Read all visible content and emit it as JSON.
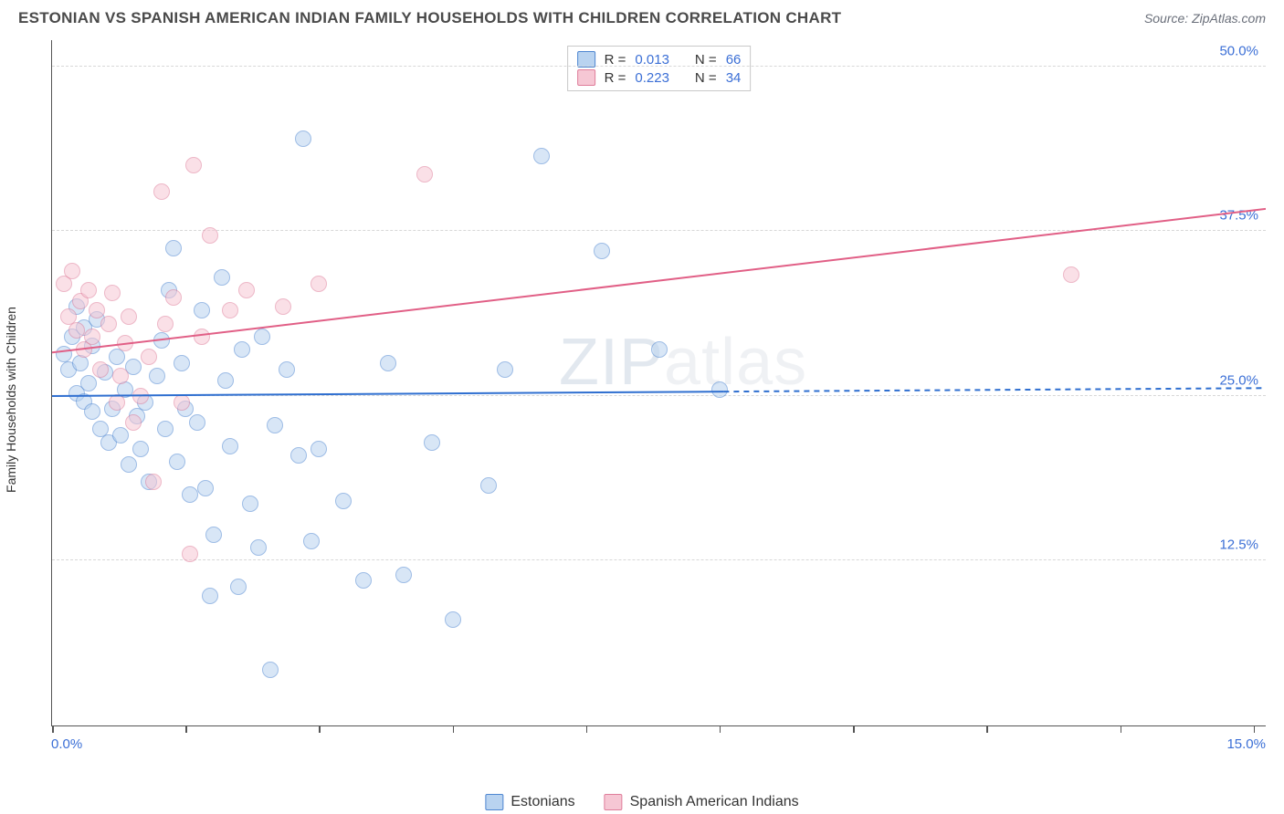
{
  "header": {
    "title": "ESTONIAN VS SPANISH AMERICAN INDIAN FAMILY HOUSEHOLDS WITH CHILDREN CORRELATION CHART",
    "source": "Source: ZipAtlas.com"
  },
  "watermark": {
    "part1": "ZIP",
    "part2": "atlas"
  },
  "chart": {
    "type": "scatter",
    "ylabel": "Family Households with Children",
    "background_color": "#ffffff",
    "grid_color": "#d8d8d8",
    "axis_color": "#555555",
    "label_color": "#333333",
    "tick_label_color": "#3b6fd6",
    "xlim": [
      0.0,
      15.0
    ],
    "ylim": [
      0.0,
      52.0
    ],
    "xtick_positions": [
      0.0,
      1.65,
      3.3,
      4.95,
      6.6,
      8.25,
      9.9,
      11.55,
      13.2,
      14.85
    ],
    "xmin_label": "0.0%",
    "xmax_label": "15.0%",
    "ytick_positions": [
      12.5,
      25.0,
      37.5,
      50.0
    ],
    "ytick_labels": [
      "12.5%",
      "25.0%",
      "37.5%",
      "50.0%"
    ],
    "marker_radius": 9,
    "marker_border_width": 1.4,
    "series": [
      {
        "name": "Estonians",
        "fill": "#b9d3f0",
        "stroke": "#4e86d1",
        "fill_opacity": 0.55,
        "R": "0.013",
        "N": "66",
        "trend": {
          "color": "#2f6fd0",
          "width": 2,
          "y_at_xmin": 25.0,
          "y_at_xmax": 25.6,
          "solid_until_x": 8.3
        },
        "points": [
          [
            0.15,
            28.2
          ],
          [
            0.2,
            27.0
          ],
          [
            0.25,
            29.5
          ],
          [
            0.3,
            25.2
          ],
          [
            0.3,
            31.8
          ],
          [
            0.35,
            27.5
          ],
          [
            0.4,
            24.6
          ],
          [
            0.4,
            30.2
          ],
          [
            0.45,
            26.0
          ],
          [
            0.5,
            23.8
          ],
          [
            0.5,
            28.8
          ],
          [
            0.55,
            30.8
          ],
          [
            0.6,
            22.5
          ],
          [
            0.65,
            26.8
          ],
          [
            0.7,
            21.5
          ],
          [
            0.75,
            24.0
          ],
          [
            0.8,
            28.0
          ],
          [
            0.85,
            22.0
          ],
          [
            0.9,
            25.5
          ],
          [
            0.95,
            19.8
          ],
          [
            1.0,
            27.2
          ],
          [
            1.05,
            23.5
          ],
          [
            1.1,
            21.0
          ],
          [
            1.15,
            24.5
          ],
          [
            1.2,
            18.5
          ],
          [
            1.3,
            26.5
          ],
          [
            1.35,
            29.2
          ],
          [
            1.4,
            22.5
          ],
          [
            1.45,
            33.0
          ],
          [
            1.5,
            36.2
          ],
          [
            1.55,
            20.0
          ],
          [
            1.6,
            27.5
          ],
          [
            1.65,
            24.0
          ],
          [
            1.7,
            17.5
          ],
          [
            1.8,
            23.0
          ],
          [
            1.85,
            31.5
          ],
          [
            1.9,
            18.0
          ],
          [
            1.95,
            9.8
          ],
          [
            2.0,
            14.5
          ],
          [
            2.1,
            34.0
          ],
          [
            2.15,
            26.2
          ],
          [
            2.2,
            21.2
          ],
          [
            2.3,
            10.5
          ],
          [
            2.35,
            28.5
          ],
          [
            2.45,
            16.8
          ],
          [
            2.55,
            13.5
          ],
          [
            2.6,
            29.5
          ],
          [
            2.7,
            4.2
          ],
          [
            2.75,
            22.8
          ],
          [
            2.9,
            27.0
          ],
          [
            3.05,
            20.5
          ],
          [
            3.1,
            44.5
          ],
          [
            3.2,
            14.0
          ],
          [
            3.3,
            21.0
          ],
          [
            3.6,
            17.0
          ],
          [
            3.85,
            11.0
          ],
          [
            4.15,
            27.5
          ],
          [
            4.35,
            11.4
          ],
          [
            4.7,
            21.5
          ],
          [
            4.95,
            8.0
          ],
          [
            5.4,
            18.2
          ],
          [
            5.6,
            27.0
          ],
          [
            6.05,
            43.2
          ],
          [
            6.8,
            36.0
          ],
          [
            7.5,
            28.5
          ],
          [
            8.25,
            25.5
          ]
        ]
      },
      {
        "name": "Spanish American Indians",
        "fill": "#f6c7d4",
        "stroke": "#df7d9a",
        "fill_opacity": 0.55,
        "R": "0.223",
        "N": "34",
        "trend": {
          "color": "#e15f86",
          "width": 2,
          "y_at_xmin": 28.3,
          "y_at_xmax": 39.2,
          "solid_until_x": 15.0
        },
        "points": [
          [
            0.15,
            33.5
          ],
          [
            0.2,
            31.0
          ],
          [
            0.25,
            34.5
          ],
          [
            0.3,
            30.0
          ],
          [
            0.35,
            32.2
          ],
          [
            0.4,
            28.5
          ],
          [
            0.45,
            33.0
          ],
          [
            0.5,
            29.5
          ],
          [
            0.55,
            31.5
          ],
          [
            0.6,
            27.0
          ],
          [
            0.7,
            30.5
          ],
          [
            0.75,
            32.8
          ],
          [
            0.8,
            24.5
          ],
          [
            0.85,
            26.5
          ],
          [
            0.9,
            29.0
          ],
          [
            0.95,
            31.0
          ],
          [
            1.0,
            23.0
          ],
          [
            1.1,
            25.0
          ],
          [
            1.2,
            28.0
          ],
          [
            1.25,
            18.5
          ],
          [
            1.35,
            40.5
          ],
          [
            1.4,
            30.5
          ],
          [
            1.5,
            32.5
          ],
          [
            1.6,
            24.5
          ],
          [
            1.7,
            13.0
          ],
          [
            1.75,
            42.5
          ],
          [
            1.85,
            29.5
          ],
          [
            1.95,
            37.2
          ],
          [
            2.2,
            31.5
          ],
          [
            2.4,
            33.0
          ],
          [
            2.85,
            31.8
          ],
          [
            3.3,
            33.5
          ],
          [
            4.6,
            41.8
          ],
          [
            12.6,
            34.2
          ]
        ]
      }
    ],
    "stats_box": {
      "border_color": "#c9c9c9",
      "rows": [
        {
          "swatch_fill": "#b9d3f0",
          "swatch_stroke": "#4e86d1",
          "r_label": "R =",
          "r_val": "0.013",
          "n_label": "N =",
          "n_val": "66"
        },
        {
          "swatch_fill": "#f6c7d4",
          "swatch_stroke": "#df7d9a",
          "r_label": "R =",
          "r_val": "0.223",
          "n_label": "N =",
          "n_val": "34"
        }
      ]
    },
    "legend": [
      {
        "swatch_fill": "#b9d3f0",
        "swatch_stroke": "#4e86d1",
        "label": "Estonians"
      },
      {
        "swatch_fill": "#f6c7d4",
        "swatch_stroke": "#df7d9a",
        "label": "Spanish American Indians"
      }
    ]
  }
}
